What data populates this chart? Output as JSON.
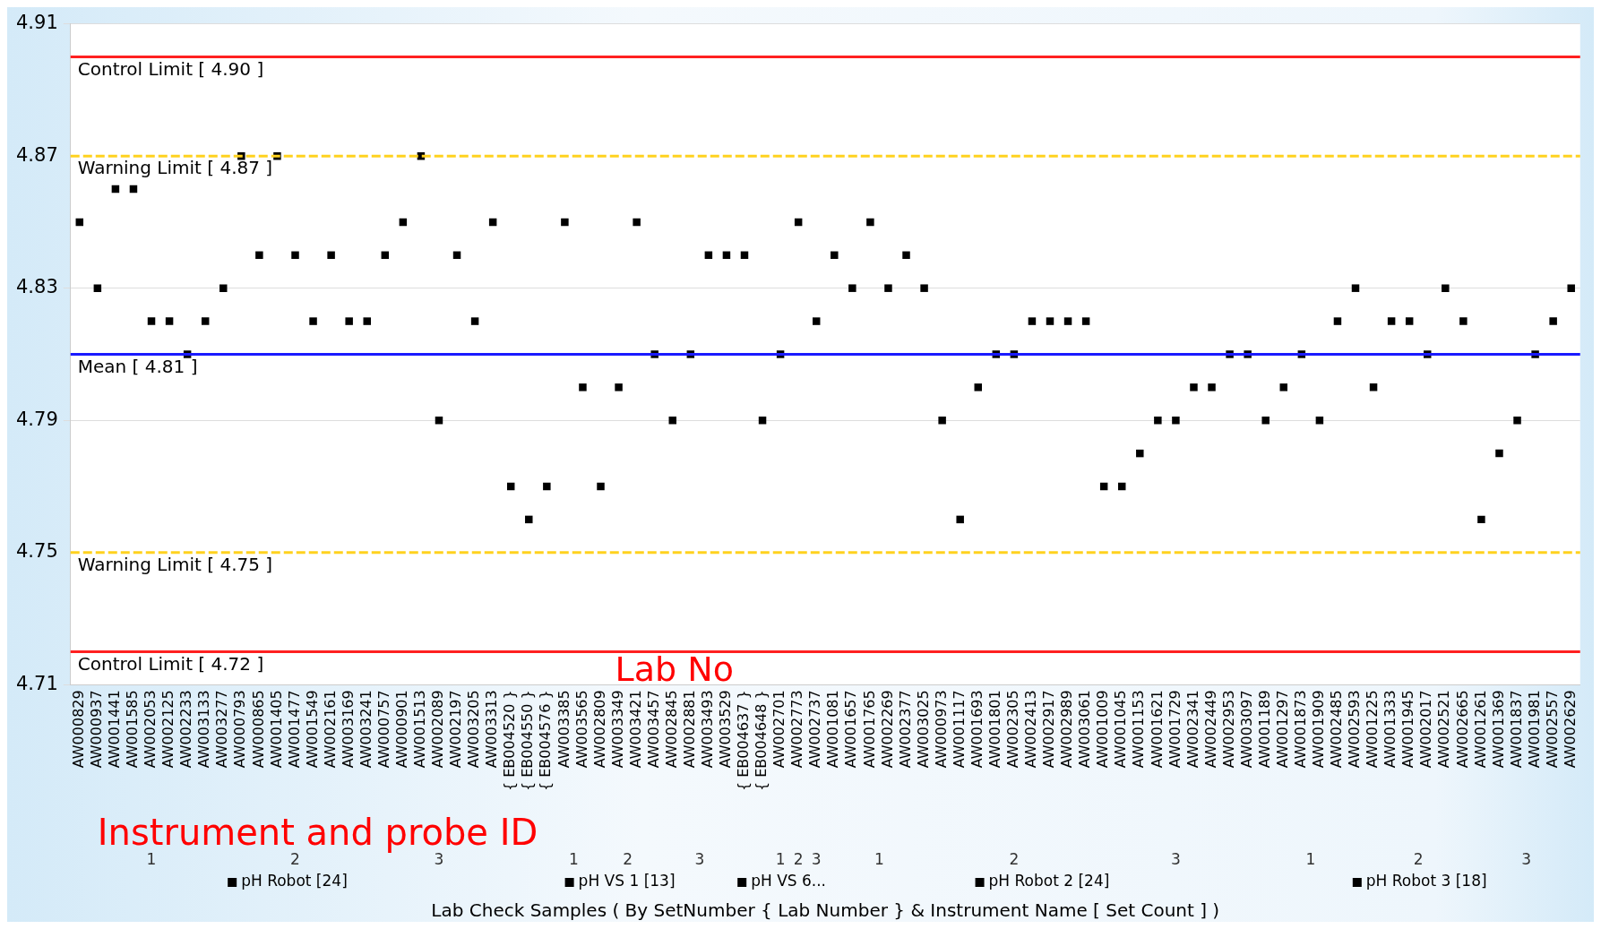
{
  "chart_data": {
    "type": "scatter",
    "categories": [
      "AW000829",
      "AW000937",
      "AW001441",
      "AW001585",
      "AW002053",
      "AW002125",
      "AW002233",
      "AW003133",
      "AW003277",
      "AW000793",
      "AW000865",
      "AW001405",
      "AW001477",
      "AW001549",
      "AW002161",
      "AW003169",
      "AW003241",
      "AW000757",
      "AW000901",
      "AW001513",
      "AW002089",
      "AW002197",
      "AW003205",
      "AW003313",
      "{ EB004520 }",
      "{ EB004550 }",
      "{ EB004576 }",
      "AW003385",
      "AW003565",
      "AW002809",
      "AW003349",
      "AW003421",
      "AW003457",
      "AW002845",
      "AW002881",
      "AW003493",
      "AW003529",
      "{ EB004637 }",
      "{ EB004648 }",
      "AW002701",
      "AW002773",
      "AW002737",
      "AW001081",
      "AW001657",
      "AW001765",
      "AW002269",
      "AW002377",
      "AW003025",
      "AW000973",
      "AW001117",
      "AW001693",
      "AW001801",
      "AW002305",
      "AW002413",
      "AW002917",
      "AW002989",
      "AW003061",
      "AW001009",
      "AW001045",
      "AW001153",
      "AW001621",
      "AW001729",
      "AW002341",
      "AW002449",
      "AW002953",
      "AW003097",
      "AW001189",
      "AW001297",
      "AW001873",
      "AW001909",
      "AW002485",
      "AW002593",
      "AW001225",
      "AW001333",
      "AW001945",
      "AW002017",
      "AW002521",
      "AW002665",
      "AW001261",
      "AW001369",
      "AW001837",
      "AW001981",
      "AW002557",
      "AW002629"
    ],
    "series": [
      {
        "name": "pH Robot [24]",
        "color": "#000000",
        "x": [
          "AW000829",
          "AW000937",
          "AW001441",
          "AW001585",
          "AW002053",
          "AW002125",
          "AW002233",
          "AW003133",
          "AW003277",
          "AW000793",
          "AW000865",
          "AW001405",
          "AW001477",
          "AW001549",
          "AW002161",
          "AW003169",
          "AW003241",
          "AW000757",
          "AW000901",
          "AW001513",
          "AW002089",
          "AW002197",
          "AW003205",
          "AW003313"
        ],
        "values": [
          4.85,
          4.83,
          4.86,
          4.86,
          4.82,
          4.82,
          4.81,
          4.82,
          4.83,
          4.87,
          4.84,
          4.87,
          4.84,
          4.82,
          4.84,
          4.82,
          4.82,
          4.84,
          4.85,
          4.87,
          4.79,
          4.84,
          4.82,
          4.85
        ]
      },
      {
        "name": "pH VS 1 [13]",
        "color": "#000000",
        "x": [
          "{ EB004520 }",
          "{ EB004550 }",
          "{ EB004576 }",
          "AW003385",
          "AW003565",
          "AW002809",
          "AW003349",
          "AW003421",
          "AW003457",
          "AW002845",
          "AW002881",
          "AW003493",
          "AW003529"
        ],
        "values": [
          4.77,
          4.76,
          4.77,
          4.85,
          4.8,
          4.77,
          4.8,
          4.85,
          4.81,
          4.79,
          4.81,
          4.84,
          4.84
        ]
      },
      {
        "name": "pH VS 6...",
        "color": "#000000",
        "x": [
          "{ EB004637 }",
          "{ EB004648 }",
          "AW002701",
          "AW002773",
          "AW002737"
        ],
        "values": [
          4.84,
          4.79,
          4.81,
          4.85,
          4.82
        ]
      },
      {
        "name": "pH Robot 2 [24]",
        "color": "#000000",
        "x": [
          "AW001081",
          "AW001657",
          "AW001765",
          "AW002269",
          "AW002377",
          "AW003025",
          "AW000973",
          "AW001117",
          "AW001693",
          "AW001801",
          "AW002305",
          "AW002413",
          "AW002917",
          "AW002989",
          "AW003061",
          "AW001009",
          "AW001045",
          "AW001153",
          "AW001621",
          "AW001729",
          "AW002341",
          "AW002449",
          "AW002953",
          "AW003097"
        ],
        "values": [
          4.84,
          4.83,
          4.85,
          4.83,
          4.84,
          4.83,
          4.79,
          4.76,
          4.8,
          4.81,
          4.81,
          4.82,
          4.82,
          4.82,
          4.82,
          4.77,
          4.77,
          4.78,
          4.79,
          4.79,
          4.8,
          4.8,
          4.81,
          4.81
        ]
      },
      {
        "name": "pH Robot 3 [18]",
        "color": "#000000",
        "x": [
          "AW001189",
          "AW001297",
          "AW001873",
          "AW001909",
          "AW002485",
          "AW002593",
          "AW001225",
          "AW001333",
          "AW001945",
          "AW002017",
          "AW002521",
          "AW002665",
          "AW001261",
          "AW001369",
          "AW001837",
          "AW001981",
          "AW002557",
          "AW002629"
        ],
        "values": [
          4.79,
          4.8,
          4.81,
          4.79,
          4.82,
          4.83,
          4.8,
          4.82,
          4.82,
          4.81,
          4.83,
          4.82,
          4.76,
          4.78,
          4.79,
          4.81,
          4.82,
          4.83
        ]
      }
    ],
    "ylim": [
      4.71,
      4.91
    ],
    "yticks": [
      4.71,
      4.75,
      4.79,
      4.83,
      4.87,
      4.91
    ],
    "grid": "y",
    "legend": "bottom",
    "marker": "square",
    "ref_lines": [
      {
        "axis": "y",
        "value": 4.9,
        "label": "Control Limit [ 4.90 ]",
        "color": "#ff2020",
        "line_style": "solid"
      },
      {
        "axis": "y",
        "value": 4.87,
        "label": "Warning Limit [ 4.87 ]",
        "color": "#ffd21f",
        "line_style": "dashed"
      },
      {
        "axis": "y",
        "value": 4.81,
        "label": "Mean [ 4.81 ]",
        "color": "#1a1aff",
        "line_style": "solid"
      },
      {
        "axis": "y",
        "value": 4.75,
        "label": "Warning Limit [ 4.75 ]",
        "color": "#ffd21f",
        "line_style": "dashed"
      },
      {
        "axis": "y",
        "value": 4.72,
        "label": "Control Limit [ 4.72 ]",
        "color": "#ff2020",
        "line_style": "solid"
      }
    ],
    "annotations": [
      "Lab No",
      "Instrument and probe ID",
      "1",
      "2",
      "3",
      "1",
      "2",
      "3",
      "1",
      "2",
      "3",
      "1",
      "2",
      "3",
      "1",
      "2",
      "3",
      "Lab Check Samples ( By SetNumber { Lab Number } & Instrument Name [ Set Count ] )"
    ]
  }
}
